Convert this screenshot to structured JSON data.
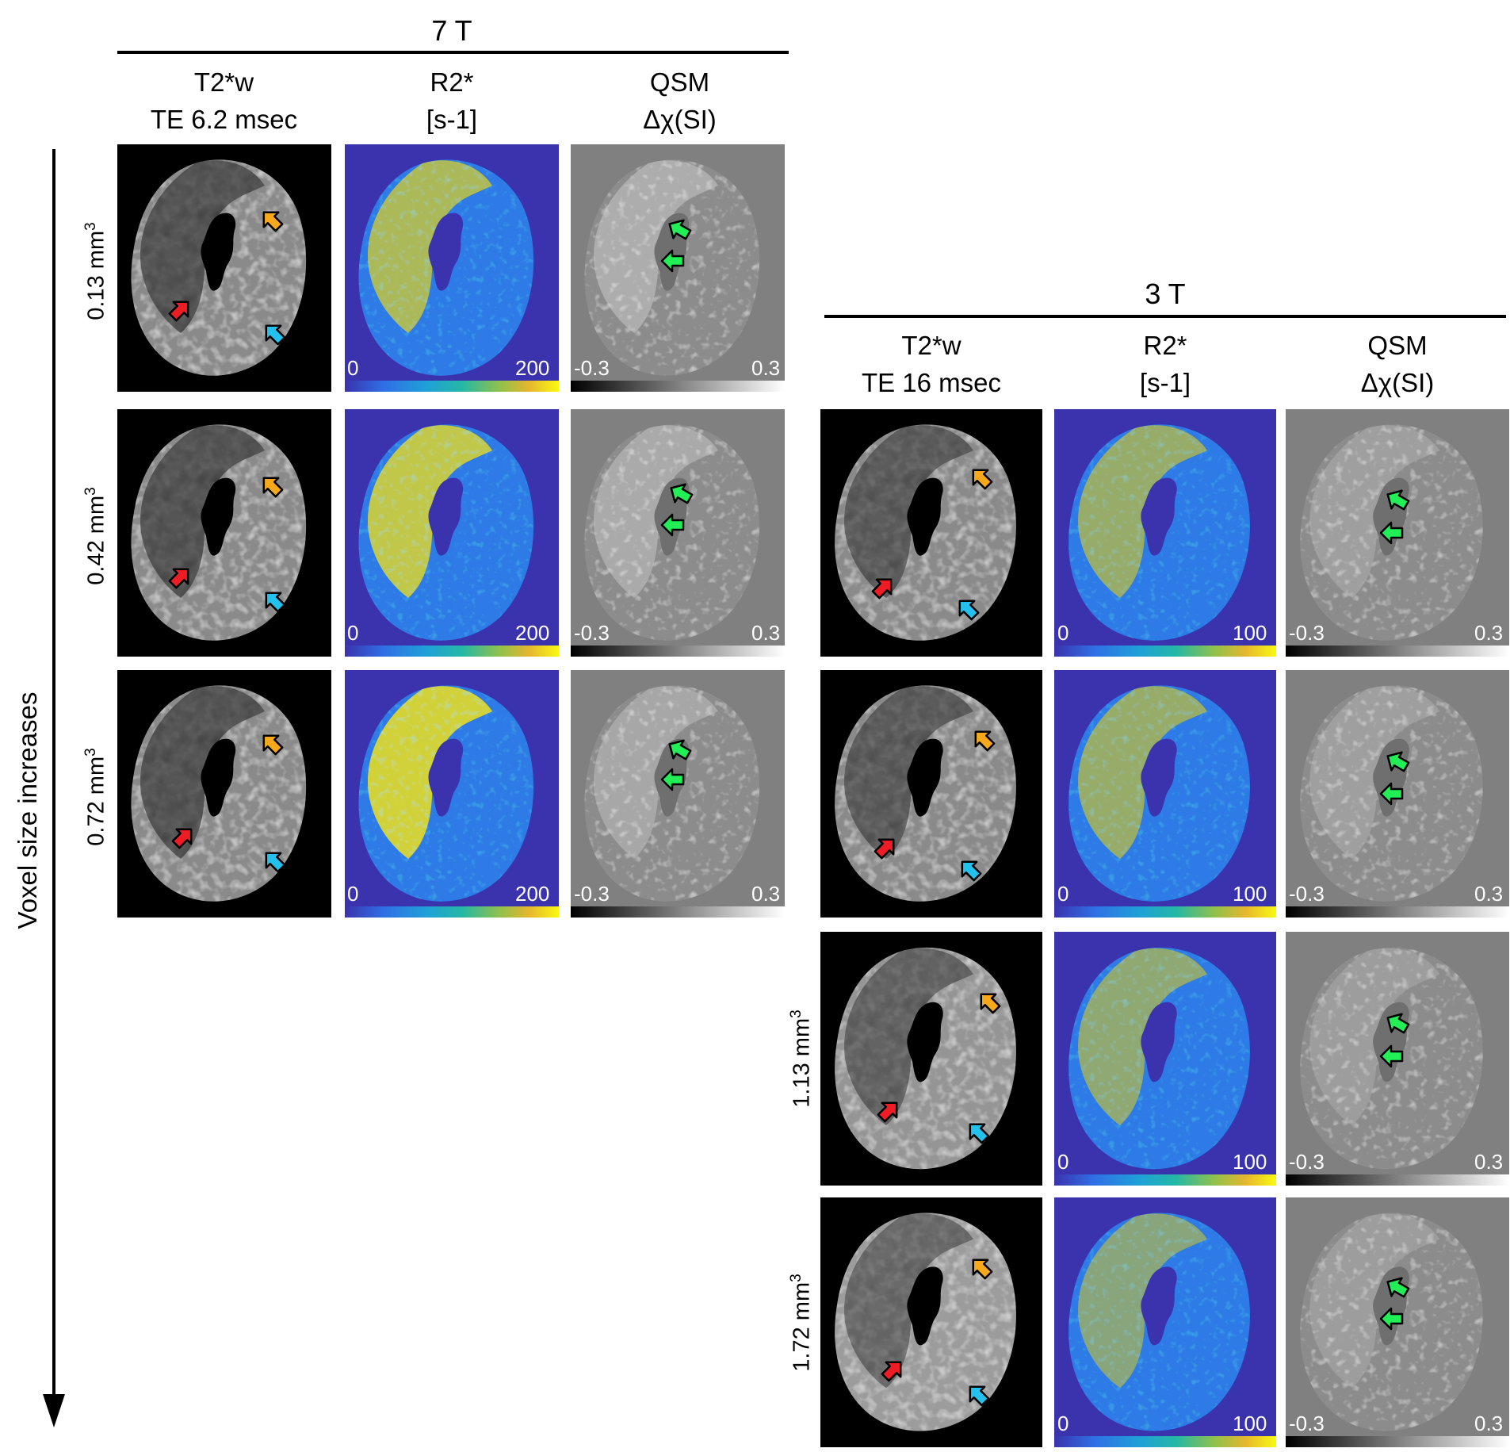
{
  "figure": {
    "axis_label": "Voxel size increases",
    "field_7t": {
      "title": "7 T",
      "columns": [
        {
          "line1": "T2*w",
          "line2": "TE 6.2 msec"
        },
        {
          "line1": "R2*",
          "line2": "[s-1]"
        },
        {
          "line1": "QSM",
          "line2": "Δχ(SI)"
        }
      ],
      "rows": [
        {
          "label": "0.13 mm",
          "sup": "3"
        },
        {
          "label": "0.42 mm",
          "sup": "3"
        },
        {
          "label": "0.72 mm",
          "sup": "3"
        }
      ],
      "r2_scale": {
        "min": "0",
        "max": "200"
      },
      "qsm_scale": {
        "min": "-0.3",
        "max": "0.3"
      }
    },
    "field_3t": {
      "title": "3 T",
      "columns": [
        {
          "line1": "T2*w",
          "line2": "TE 16 msec"
        },
        {
          "line1": "R2*",
          "line2": "[s-1]"
        },
        {
          "line1": "QSM",
          "line2": "Δχ(SI)"
        }
      ],
      "rows": [
        {
          "label": "1.13 mm",
          "sup": "3"
        },
        {
          "label": "1.72 mm",
          "sup": "3"
        }
      ],
      "r2_scale": {
        "min": "0",
        "max": "100"
      },
      "qsm_scale": {
        "min": "-0.3",
        "max": "0.3"
      }
    },
    "colors": {
      "r2_background": "#3a33ad",
      "r2_tissue": "#2f7ae6",
      "r2_high": "#f6e81f",
      "qsm_background": "#808080",
      "t2w_background": "#000000",
      "arrow_orange": "#f7a81b",
      "arrow_red": "#ee1c24",
      "arrow_cyan": "#22c1ee",
      "arrow_green": "#22ee55"
    }
  }
}
